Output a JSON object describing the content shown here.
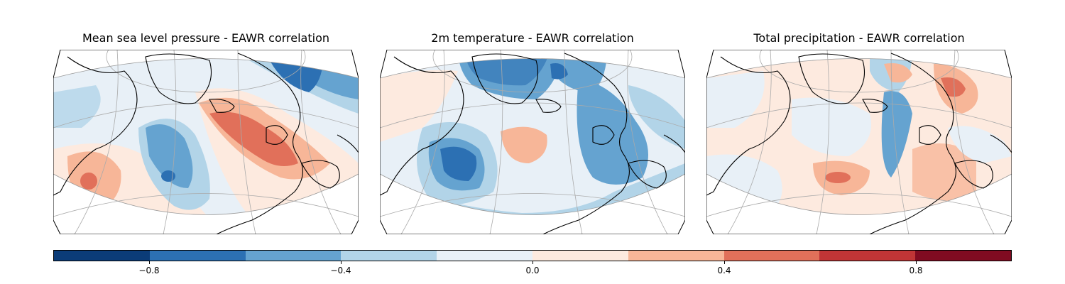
{
  "panels": [
    {
      "title": "Mean sea level pressure - EAWR correlation"
    },
    {
      "title": "2m temperature - EAWR correlation"
    },
    {
      "title": "Total precipitation - EAWR correlation"
    }
  ],
  "colorbar": {
    "levels": [
      -1.0,
      -0.8,
      -0.6,
      -0.4,
      -0.2,
      0.0,
      0.2,
      0.4,
      0.6,
      0.8,
      1.0
    ],
    "colors": [
      "#0b3c78",
      "#2c70b3",
      "#65a3d0",
      "#b2d4e8",
      "#e8f0f7",
      "#fdeadf",
      "#f7b698",
      "#e1705a",
      "#c03536",
      "#800b21"
    ],
    "ticks": [
      {
        "value": -0.8,
        "label": "−0.8"
      },
      {
        "value": -0.4,
        "label": "−0.4"
      },
      {
        "value": 0.0,
        "label": "0.0"
      },
      {
        "value": 0.4,
        "label": "0.4"
      },
      {
        "value": 0.8,
        "label": "0.8"
      }
    ]
  }
}
